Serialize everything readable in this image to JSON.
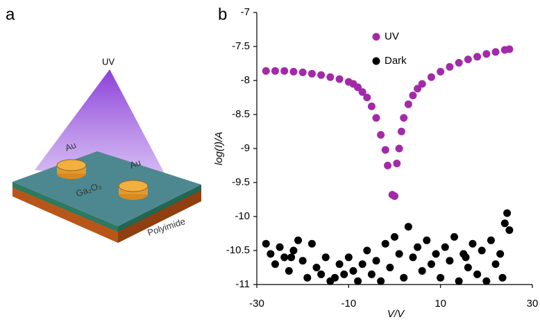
{
  "panel_labels": [
    "a",
    "b"
  ],
  "diagram": {
    "labels": [
      "UV",
      "Au",
      "Au",
      "Ga₂O₃",
      "Polyimide"
    ]
  },
  "chart_data": {
    "type": "scatter",
    "xlabel": "V/V",
    "ylabel": "log(I)/A",
    "xlim": [
      -30,
      30
    ],
    "xticks": [
      -30,
      -10,
      10,
      30
    ],
    "ylim": [
      -11,
      -7
    ],
    "yticks": [
      -11,
      -10.5,
      -10,
      -9.5,
      -9,
      -8.5,
      -8,
      -7.5,
      -7
    ],
    "legend": "top-center",
    "series": [
      {
        "name": "UV",
        "color": "#a22aa8",
        "x": [
          -28,
          -26,
          -24,
          -22,
          -20,
          -18,
          -16,
          -14,
          -12,
          -10,
          -9,
          -8,
          -7,
          -6,
          -5,
          -4,
          -3,
          -2,
          -1.5,
          -0.5,
          0,
          0.5,
          1,
          1.5,
          2,
          3,
          4,
          5,
          6,
          8,
          10,
          12,
          14,
          16,
          18,
          20,
          22,
          24,
          25
        ],
        "values": [
          -7.86,
          -7.86,
          -7.86,
          -7.87,
          -7.88,
          -7.9,
          -7.92,
          -7.95,
          -7.98,
          -8.02,
          -8.05,
          -8.1,
          -8.17,
          -8.25,
          -8.38,
          -8.55,
          -8.8,
          -9.02,
          -9.25,
          -9.68,
          -9.7,
          -9.22,
          -9.0,
          -8.75,
          -8.55,
          -8.35,
          -8.22,
          -8.12,
          -8.05,
          -7.95,
          -7.87,
          -7.8,
          -7.74,
          -7.69,
          -7.65,
          -7.61,
          -7.58,
          -7.55,
          -7.54
        ]
      },
      {
        "name": "Dark",
        "color": "#000000",
        "x": [
          -28,
          -27,
          -26,
          -25,
          -24,
          -23,
          -22,
          -21,
          -20,
          -19,
          -18,
          -17,
          -16,
          -15,
          -14,
          -13,
          -12,
          -11,
          -10,
          -9,
          -8,
          -7,
          -6,
          -5,
          -4,
          -3,
          -2,
          -1,
          0,
          1,
          2,
          3,
          4,
          5,
          6,
          7,
          8,
          9,
          10,
          11,
          12,
          13,
          14,
          15,
          16,
          17,
          18,
          19,
          20,
          21,
          22,
          23,
          24,
          24.5,
          25,
          23.5,
          -22.5,
          15.5
        ],
        "values": [
          -10.4,
          -10.55,
          -10.7,
          -10.45,
          -10.6,
          -10.8,
          -10.5,
          -10.35,
          -10.65,
          -10.9,
          -10.4,
          -10.75,
          -10.85,
          -10.6,
          -10.95,
          -10.9,
          -10.7,
          -10.85,
          -10.6,
          -10.8,
          -10.95,
          -10.7,
          -10.5,
          -10.85,
          -10.65,
          -10.95,
          -10.4,
          -10.75,
          -10.3,
          -10.55,
          -10.9,
          -10.15,
          -10.6,
          -10.45,
          -10.8,
          -10.35,
          -10.7,
          -10.55,
          -10.9,
          -10.45,
          -10.65,
          -10.3,
          -10.95,
          -10.55,
          -10.75,
          -10.4,
          -10.85,
          -10.5,
          -10.95,
          -10.35,
          -10.7,
          -10.55,
          -10.1,
          -9.95,
          -10.2,
          -10.9,
          -10.6,
          -10.6
        ]
      }
    ]
  }
}
